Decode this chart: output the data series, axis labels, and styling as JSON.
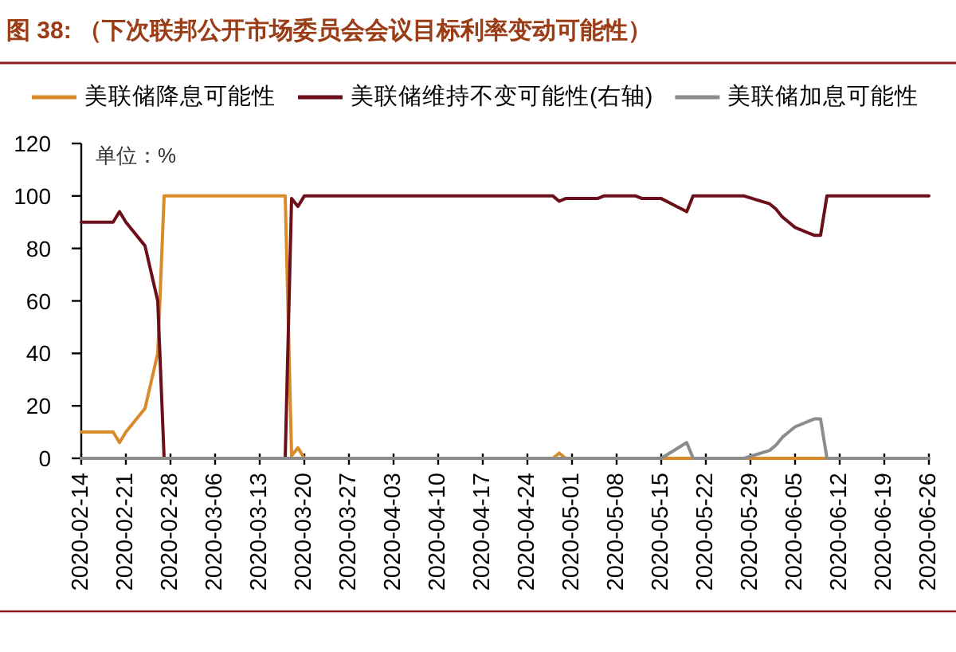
{
  "chart_data": {
    "type": "line",
    "title": "图 38: （下次联邦公开市场委员会会议目标利率变动可能性）",
    "annotations": [
      "单位：%"
    ],
    "x": [
      "2020-02-14",
      "2020-02-19",
      "2020-02-20",
      "2020-02-21",
      "2020-02-24",
      "2020-02-26",
      "2020-02-27",
      "2020-03-17",
      "2020-03-18",
      "2020-03-19",
      "2020-03-20",
      "2020-04-28",
      "2020-04-29",
      "2020-04-30",
      "2020-05-05",
      "2020-05-06",
      "2020-05-11",
      "2020-05-12",
      "2020-05-15",
      "2020-05-19",
      "2020-05-20",
      "2020-05-28",
      "2020-06-01",
      "2020-06-02",
      "2020-06-03",
      "2020-06-04",
      "2020-06-05",
      "2020-06-08",
      "2020-06-09",
      "2020-06-10",
      "2020-06-26"
    ],
    "series": [
      {
        "name": "美联储降息可能性",
        "color": "#d98b2b",
        "values": [
          10,
          10,
          6,
          10,
          19,
          40,
          100,
          100,
          1,
          4,
          0,
          0,
          2,
          0,
          0,
          0,
          0,
          0,
          0,
          0,
          0,
          0,
          0,
          0,
          0,
          0,
          0,
          0,
          0,
          0,
          null
        ]
      },
      {
        "name": "美联储维持不变可能性(右轴)",
        "color": "#6b0f1a",
        "values": [
          90,
          90,
          94,
          90,
          81,
          60,
          0,
          0,
          99,
          96,
          100,
          100,
          98,
          99,
          99,
          100,
          100,
          99,
          99,
          94,
          100,
          100,
          97,
          95,
          92,
          90,
          88,
          85,
          85,
          100,
          100
        ]
      },
      {
        "name": "美联储加息可能性",
        "color": "#8c8c8c",
        "values": [
          0,
          0,
          0,
          0,
          0,
          0,
          0,
          0,
          0,
          0,
          0,
          0,
          0,
          0,
          0,
          0,
          0,
          0,
          0,
          6,
          0,
          0,
          3,
          5,
          8,
          10,
          12,
          15,
          15,
          0,
          0
        ]
      }
    ],
    "xlim": [
      "2020-02-14",
      "2020-06-26"
    ],
    "xticks": [
      "2020-02-14",
      "2020-02-21",
      "2020-02-28",
      "2020-03-06",
      "2020-03-13",
      "2020-03-20",
      "2020-03-27",
      "2020-04-03",
      "2020-04-10",
      "2020-04-17",
      "2020-04-24",
      "2020-05-01",
      "2020-05-08",
      "2020-05-15",
      "2020-05-22",
      "2020-05-29",
      "2020-06-05",
      "2020-06-12",
      "2020-06-19",
      "2020-06-26"
    ],
    "ylim": [
      0,
      120
    ],
    "yticks": [
      0,
      20,
      40,
      60,
      80,
      100,
      120
    ],
    "legend": "top",
    "line_style": "solid"
  }
}
